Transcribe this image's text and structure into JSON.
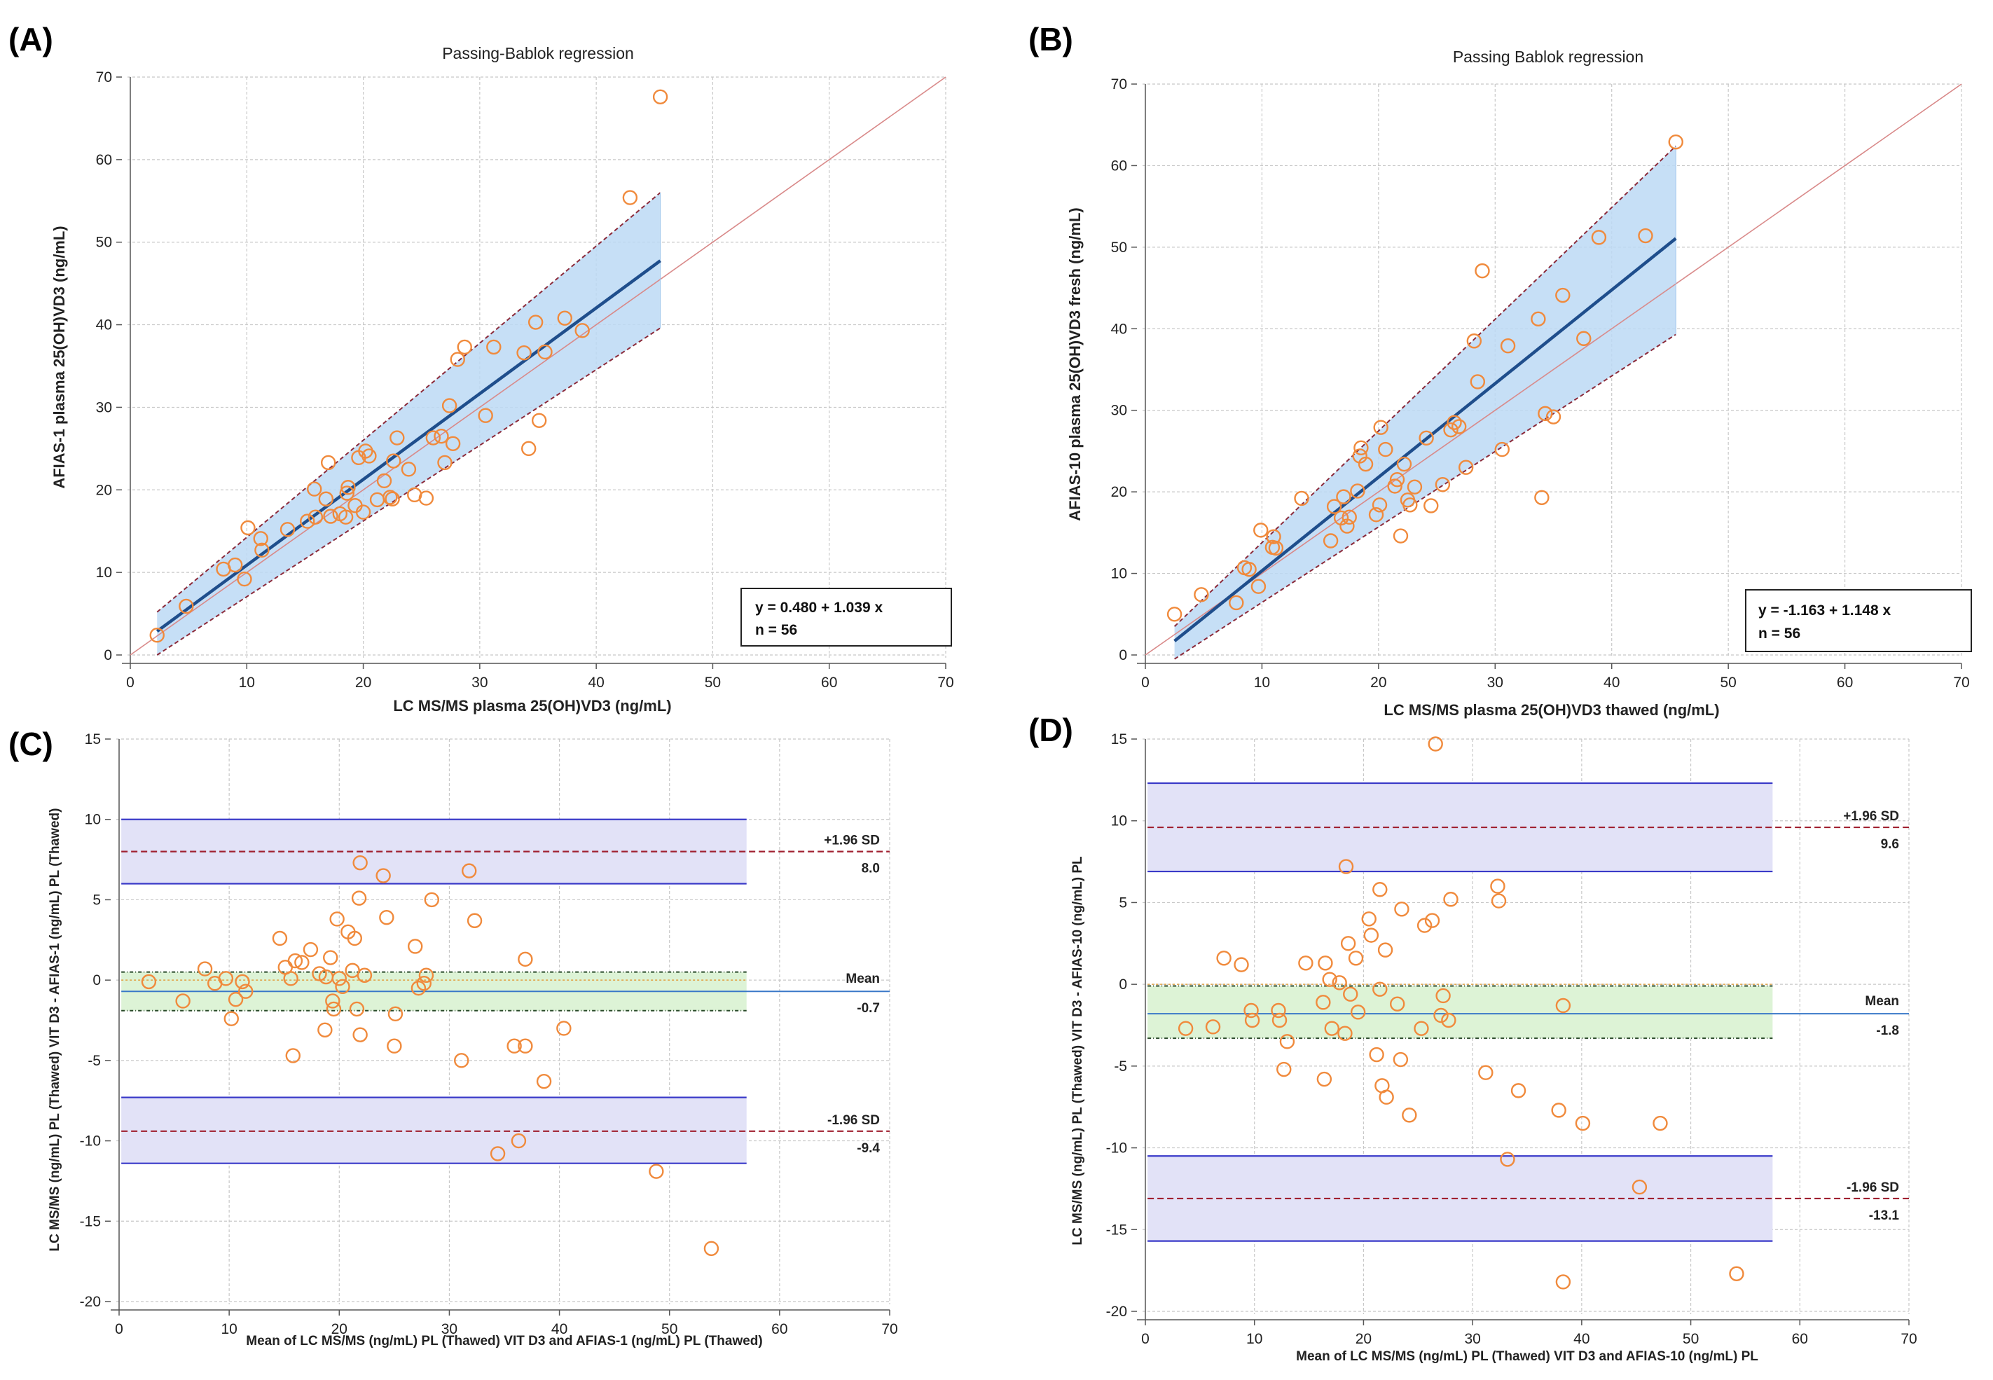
{
  "chart_data": [
    {
      "panel": "(A)",
      "type": "scatter",
      "title": "Passing-Bablok regression",
      "xlabel": "LC MS/MS plasma 25(OH)VD3 (ng/mL)",
      "ylabel": "AFIAS-1 plasma 25(OH)VD3 (ng/mL)",
      "xlim": [
        0,
        70
      ],
      "ylim": [
        0,
        70
      ],
      "xticks": [
        0,
        10,
        20,
        30,
        40,
        50,
        60,
        70
      ],
      "yticks": [
        0,
        10,
        20,
        30,
        40,
        50,
        60,
        70
      ],
      "equation": "y = 0.480  +  1.039  x",
      "n_label": "n = 56",
      "regression": {
        "intercept": 0.48,
        "slope": 1.039,
        "x_range": [
          2.3,
          45.5
        ]
      },
      "ci_band": {
        "x_range": [
          2.3,
          45.5
        ],
        "lower": [
          0.0,
          39.6
        ],
        "upper": [
          5.2,
          56.0
        ]
      },
      "points": [
        [
          2.3,
          2.4
        ],
        [
          4.8,
          5.9
        ],
        [
          8.0,
          10.4
        ],
        [
          9.0,
          10.9
        ],
        [
          9.8,
          9.2
        ],
        [
          10.1,
          15.4
        ],
        [
          11.2,
          14.1
        ],
        [
          11.3,
          12.7
        ],
        [
          13.5,
          15.2
        ],
        [
          15.2,
          16.2
        ],
        [
          15.8,
          20.1
        ],
        [
          15.9,
          16.7
        ],
        [
          16.8,
          18.9
        ],
        [
          17.0,
          23.3
        ],
        [
          17.2,
          16.8
        ],
        [
          18.0,
          17.1
        ],
        [
          18.5,
          16.7
        ],
        [
          18.6,
          19.6
        ],
        [
          18.7,
          20.3
        ],
        [
          19.3,
          18.1
        ],
        [
          19.6,
          23.9
        ],
        [
          20.0,
          17.3
        ],
        [
          20.2,
          24.7
        ],
        [
          20.5,
          24.1
        ],
        [
          21.2,
          18.8
        ],
        [
          21.8,
          21.1
        ],
        [
          22.3,
          19.1
        ],
        [
          22.5,
          18.9
        ],
        [
          22.6,
          23.5
        ],
        [
          22.9,
          26.3
        ],
        [
          23.9,
          22.5
        ],
        [
          24.4,
          19.4
        ],
        [
          25.4,
          19.0
        ],
        [
          26.0,
          26.3
        ],
        [
          26.7,
          26.5
        ],
        [
          27.0,
          23.3
        ],
        [
          27.4,
          30.2
        ],
        [
          27.7,
          25.6
        ],
        [
          28.1,
          35.8
        ],
        [
          28.7,
          37.3
        ],
        [
          30.5,
          29.0
        ],
        [
          31.2,
          37.3
        ],
        [
          33.8,
          36.6
        ],
        [
          34.2,
          25.0
        ],
        [
          34.8,
          40.3
        ],
        [
          35.1,
          28.4
        ],
        [
          35.6,
          36.7
        ],
        [
          37.3,
          40.8
        ],
        [
          38.8,
          39.3
        ],
        [
          42.9,
          55.4
        ],
        [
          45.5,
          67.6
        ]
      ]
    },
    {
      "panel": "(B)",
      "type": "scatter",
      "title": "Passing Bablok regression",
      "xlabel": "LC MS/MS plasma 25(OH)VD3 thawed (ng/mL)",
      "ylabel": "AFIAS-10 plasma 25(OH)VD3 fresh (ng/mL)",
      "xlim": [
        0,
        70
      ],
      "ylim": [
        0,
        70
      ],
      "xticks": [
        0,
        10,
        20,
        30,
        40,
        50,
        60,
        70
      ],
      "yticks": [
        0,
        10,
        20,
        30,
        40,
        50,
        60,
        70
      ],
      "equation": "y = -1.163  +  1.148  x",
      "n_label": "n = 56",
      "regression": {
        "intercept": -1.163,
        "slope": 1.148,
        "x_range": [
          2.5,
          45.5
        ]
      },
      "ci_band": {
        "x_range": [
          2.5,
          45.5
        ],
        "lower": [
          -0.5,
          39.3
        ],
        "upper": [
          3.5,
          62.4
        ]
      },
      "points": [
        [
          2.5,
          5.0
        ],
        [
          4.8,
          7.4
        ],
        [
          7.8,
          6.4
        ],
        [
          8.5,
          10.7
        ],
        [
          8.9,
          10.5
        ],
        [
          9.7,
          8.4
        ],
        [
          9.9,
          15.3
        ],
        [
          10.9,
          13.2
        ],
        [
          11.0,
          14.5
        ],
        [
          11.2,
          13.1
        ],
        [
          13.4,
          19.2
        ],
        [
          15.9,
          14.0
        ],
        [
          16.2,
          18.2
        ],
        [
          16.8,
          16.8
        ],
        [
          17.0,
          19.4
        ],
        [
          17.3,
          15.8
        ],
        [
          17.5,
          16.9
        ],
        [
          18.2,
          20.1
        ],
        [
          18.4,
          24.4
        ],
        [
          18.5,
          25.4
        ],
        [
          18.9,
          23.4
        ],
        [
          19.8,
          17.2
        ],
        [
          20.1,
          18.4
        ],
        [
          20.2,
          27.9
        ],
        [
          20.6,
          25.2
        ],
        [
          21.4,
          20.7
        ],
        [
          21.6,
          21.5
        ],
        [
          21.9,
          14.6
        ],
        [
          22.2,
          23.4
        ],
        [
          22.5,
          19.0
        ],
        [
          22.7,
          18.4
        ],
        [
          23.1,
          20.6
        ],
        [
          24.1,
          26.6
        ],
        [
          24.5,
          18.3
        ],
        [
          25.5,
          20.9
        ],
        [
          26.2,
          27.6
        ],
        [
          26.5,
          28.5
        ],
        [
          26.9,
          28.0
        ],
        [
          27.5,
          23.0
        ],
        [
          28.2,
          38.5
        ],
        [
          28.5,
          33.5
        ],
        [
          28.9,
          47.1
        ],
        [
          30.6,
          25.2
        ],
        [
          31.1,
          37.9
        ],
        [
          33.7,
          41.2
        ],
        [
          34.0,
          19.3
        ],
        [
          34.3,
          29.6
        ],
        [
          35.0,
          29.2
        ],
        [
          35.8,
          44.1
        ],
        [
          37.6,
          38.8
        ],
        [
          38.9,
          51.2
        ],
        [
          42.9,
          51.4
        ],
        [
          45.5,
          62.9
        ]
      ]
    },
    {
      "panel": "(C)",
      "type": "scatter",
      "xlabel": "Mean of LC MS/MS (ng/mL) PL (Thawed) VIT D3 and AFIAS-1 (ng/mL) PL (Thawed)",
      "ylabel": "LC MS/MS (ng/mL) PL (Thawed) VIT D3 - AFIAS-1 (ng/mL) PL (Thawed)",
      "xlim": [
        0,
        70
      ],
      "ylim": [
        -20,
        15
      ],
      "xticks": [
        0,
        10,
        20,
        30,
        40,
        50,
        60,
        70
      ],
      "yticks": [
        -20,
        -15,
        -10,
        -5,
        0,
        5,
        10,
        15
      ],
      "mean": {
        "label": "Mean",
        "value": -0.7,
        "value_label": "-0.7",
        "ci": [
          -1.9,
          0.5
        ]
      },
      "upper_loa": {
        "label": "+1.96 SD",
        "value": 8.0,
        "value_label": "8.0",
        "ci": [
          6.0,
          10.0
        ]
      },
      "lower_loa": {
        "label": "-1.96 SD",
        "value": -9.4,
        "value_label": "-9.4",
        "ci": [
          -11.4,
          -7.3
        ]
      },
      "x_extent": [
        0.2,
        57
      ],
      "points": [
        [
          2.7,
          -0.1
        ],
        [
          5.8,
          -1.3
        ],
        [
          7.8,
          0.7
        ],
        [
          8.7,
          -0.2
        ],
        [
          9.7,
          0.1
        ],
        [
          10.2,
          -2.4
        ],
        [
          10.6,
          -1.2
        ],
        [
          11.2,
          -0.1
        ],
        [
          11.5,
          -0.7
        ],
        [
          14.6,
          2.6
        ],
        [
          15.1,
          0.8
        ],
        [
          15.6,
          0.1
        ],
        [
          15.8,
          -4.7
        ],
        [
          16.0,
          1.2
        ],
        [
          16.6,
          1.1
        ],
        [
          17.4,
          1.9
        ],
        [
          18.2,
          0.4
        ],
        [
          18.7,
          -3.1
        ],
        [
          18.8,
          0.2
        ],
        [
          19.2,
          1.4
        ],
        [
          19.4,
          -1.3
        ],
        [
          19.5,
          -1.8
        ],
        [
          19.8,
          3.8
        ],
        [
          20.0,
          0.1
        ],
        [
          20.3,
          -0.4
        ],
        [
          20.8,
          3.0
        ],
        [
          21.2,
          0.6
        ],
        [
          21.4,
          2.6
        ],
        [
          21.6,
          -1.8
        ],
        [
          21.8,
          5.1
        ],
        [
          21.9,
          -3.4
        ],
        [
          21.9,
          7.3
        ],
        [
          22.3,
          0.3
        ],
        [
          24.0,
          6.5
        ],
        [
          24.3,
          3.9
        ],
        [
          25.0,
          -4.1
        ],
        [
          25.1,
          -2.1
        ],
        [
          26.9,
          2.1
        ],
        [
          27.2,
          -0.5
        ],
        [
          27.7,
          -0.2
        ],
        [
          27.9,
          0.3
        ],
        [
          28.4,
          5.0
        ],
        [
          31.1,
          -5.0
        ],
        [
          31.8,
          6.8
        ],
        [
          32.3,
          3.7
        ],
        [
          35.9,
          -4.1
        ],
        [
          36.3,
          -10.0
        ],
        [
          36.9,
          -4.1
        ],
        [
          36.9,
          1.3
        ],
        [
          38.6,
          -6.3
        ],
        [
          40.4,
          -3.0
        ],
        [
          34.4,
          -10.8
        ],
        [
          48.8,
          -11.9
        ],
        [
          53.8,
          -16.7
        ]
      ]
    },
    {
      "panel": "(D)",
      "type": "scatter",
      "xlabel": "Mean of LC MS/MS (ng/mL) PL (Thawed) VIT D3 and AFIAS-10 (ng/mL)  PL",
      "ylabel": "LC MS/MS (ng/mL) PL (Thawed) VIT D3 - AFIAS-10 (ng/mL)  PL",
      "xlim": [
        0,
        70
      ],
      "ylim": [
        -20,
        15
      ],
      "xticks": [
        0,
        10,
        20,
        30,
        40,
        50,
        60,
        70
      ],
      "yticks": [
        -20,
        -15,
        -10,
        -5,
        0,
        5,
        10,
        15
      ],
      "mean": {
        "label": "Mean",
        "value": -1.8,
        "value_label": "-1.8",
        "ci": [
          -3.3,
          -0.1
        ]
      },
      "upper_loa": {
        "label": "+1.96 SD",
        "value": 9.6,
        "value_label": "9.6",
        "ci": [
          6.9,
          12.3
        ]
      },
      "lower_loa": {
        "label": "-1.96 SD",
        "value": -13.1,
        "value_label": "-13.1",
        "ci": [
          -15.7,
          -10.5
        ]
      },
      "x_extent": [
        0.2,
        57.5
      ],
      "points": [
        [
          3.7,
          -2.7
        ],
        [
          6.2,
          -2.6
        ],
        [
          7.2,
          1.6
        ],
        [
          8.8,
          1.2
        ],
        [
          9.7,
          -1.6
        ],
        [
          9.8,
          -2.2
        ],
        [
          12.2,
          -1.6
        ],
        [
          12.3,
          -2.2
        ],
        [
          12.7,
          -5.2
        ],
        [
          13.0,
          -3.5
        ],
        [
          14.7,
          1.3
        ],
        [
          16.3,
          -1.1
        ],
        [
          16.4,
          -5.8
        ],
        [
          16.5,
          1.3
        ],
        [
          16.9,
          0.3
        ],
        [
          17.1,
          -2.7
        ],
        [
          17.8,
          0.1
        ],
        [
          18.3,
          -3.0
        ],
        [
          18.4,
          7.2
        ],
        [
          18.6,
          2.5
        ],
        [
          18.8,
          -0.6
        ],
        [
          19.3,
          1.6
        ],
        [
          19.5,
          -1.7
        ],
        [
          20.5,
          4.0
        ],
        [
          20.7,
          3.0
        ],
        [
          21.2,
          -4.3
        ],
        [
          21.5,
          -0.3
        ],
        [
          21.5,
          5.8
        ],
        [
          21.7,
          -6.2
        ],
        [
          22.0,
          2.1
        ],
        [
          22.1,
          -6.9
        ],
        [
          23.1,
          -1.2
        ],
        [
          23.4,
          -4.6
        ],
        [
          23.5,
          4.6
        ],
        [
          24.2,
          -8.0
        ],
        [
          25.3,
          -2.7
        ],
        [
          25.6,
          3.6
        ],
        [
          26.3,
          3.9
        ],
        [
          26.6,
          14.7
        ],
        [
          27.1,
          -1.9
        ],
        [
          27.3,
          -0.7
        ],
        [
          27.8,
          -2.2
        ],
        [
          28.0,
          5.2
        ],
        [
          31.2,
          -5.4
        ],
        [
          32.3,
          6.0
        ],
        [
          32.4,
          5.1
        ],
        [
          33.2,
          -10.7
        ],
        [
          34.2,
          -6.5
        ],
        [
          37.9,
          -7.7
        ],
        [
          38.3,
          -1.3
        ],
        [
          38.3,
          -18.2
        ],
        [
          40.1,
          -8.5
        ],
        [
          45.3,
          -12.4
        ],
        [
          47.2,
          -8.5
        ],
        [
          54.2,
          -17.7
        ]
      ]
    }
  ],
  "colors": {
    "point": "#F08A3C",
    "regression": "#1F4E8C",
    "ci_fill": "#BCD9F5",
    "dashed_bound": "#8B2A3A",
    "identity": "#D98A8A",
    "grid": "#C8C8C8",
    "loa_fill": "#E2E2F7",
    "loa_edge": "#3A3AC8",
    "loa_dash": "#A02030",
    "mean_fill": "#DDF3D6",
    "mean_line": "#3A78C8",
    "mean_ci_line": "#2A4A2A"
  }
}
